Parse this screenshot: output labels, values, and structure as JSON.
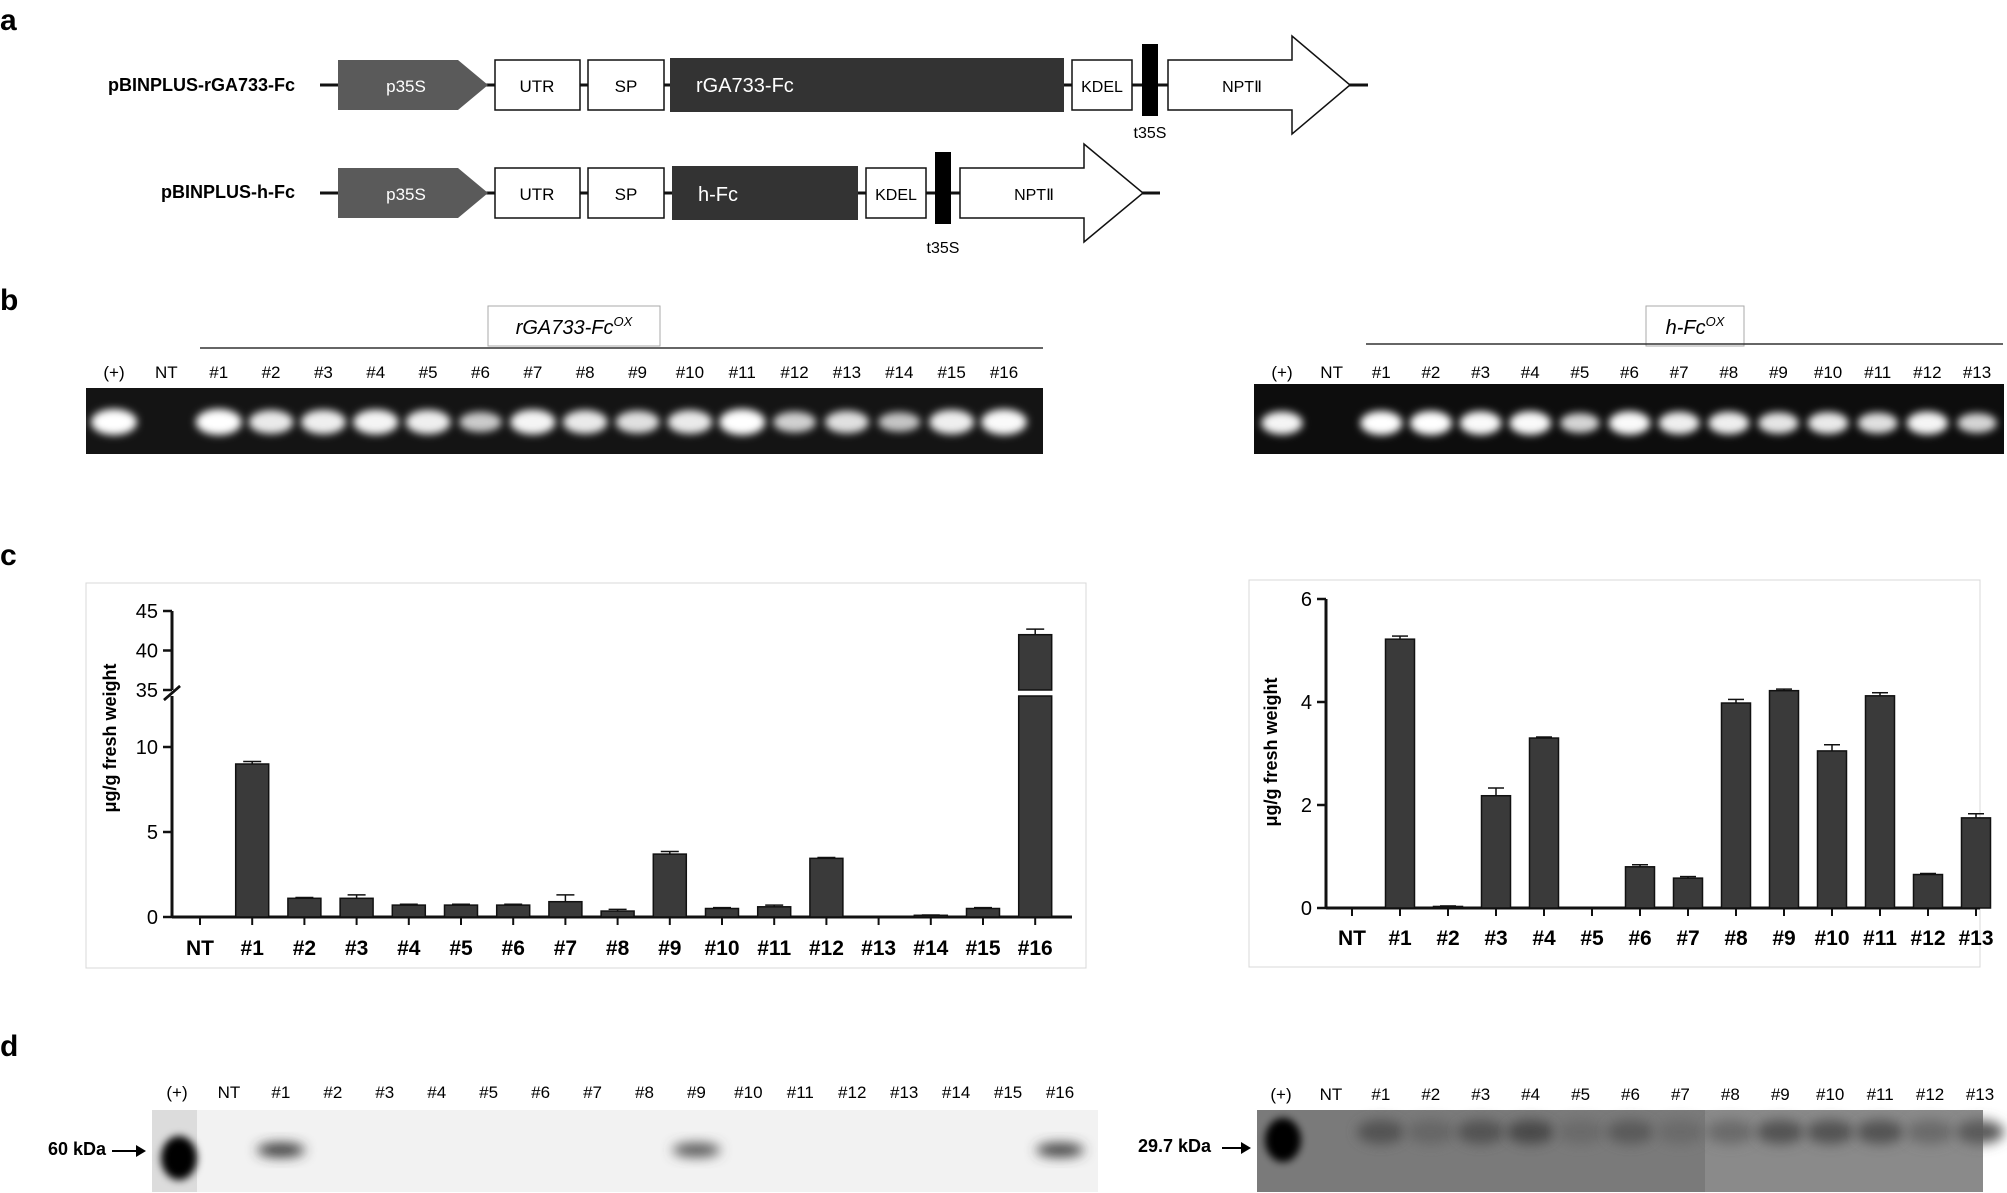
{
  "panel_letters": {
    "a": "a",
    "b": "b",
    "c": "c",
    "d": "d"
  },
  "panel_a": {
    "construct1": {
      "name": "pBINPLUS-rGA733-Fc",
      "p35s": "p35S",
      "utr": "UTR",
      "sp": "SP",
      "gene": "rGA733-Fc",
      "kdel": "KDEL",
      "t35s": "t35S",
      "npt": "NPTⅡ"
    },
    "construct2": {
      "name": "pBINPLUS-h-Fc",
      "p35s": "p35S",
      "utr": "UTR",
      "sp": "SP",
      "gene": "h-Fc",
      "kdel": "KDEL",
      "t35s": "t35S",
      "npt": "NPTⅡ"
    }
  },
  "panel_b": {
    "left": {
      "title": "rGA733-Fc",
      "superscript": "OX",
      "lanes": [
        "(+)",
        "NT",
        "#1",
        "#2",
        "#3",
        "#4",
        "#5",
        "#6",
        "#7",
        "#8",
        "#9",
        "#10",
        "#11",
        "#12",
        "#13",
        "#14",
        "#15",
        "#16"
      ],
      "band_intensity": [
        1.0,
        0,
        1.0,
        0.8,
        0.85,
        0.9,
        0.85,
        0.5,
        0.9,
        0.8,
        0.7,
        0.8,
        1.0,
        0.55,
        0.7,
        0.45,
        0.85,
        0.95
      ]
    },
    "right": {
      "title": "h-Fc",
      "superscript": "OX",
      "lanes": [
        "(+)",
        "NT",
        "#1",
        "#2",
        "#3",
        "#4",
        "#5",
        "#6",
        "#7",
        "#8",
        "#9",
        "#10",
        "#11",
        "#12",
        "#13"
      ],
      "band_intensity": [
        0.9,
        0,
        1.0,
        1.0,
        0.95,
        0.95,
        0.6,
        0.95,
        0.85,
        0.85,
        0.75,
        0.8,
        0.7,
        0.9,
        0.6
      ]
    }
  },
  "chart_data": [
    {
      "type": "bar",
      "ylabel": "μg/g fresh weight",
      "categories": [
        "NT",
        "#1",
        "#2",
        "#3",
        "#4",
        "#5",
        "#6",
        "#7",
        "#8",
        "#9",
        "#10",
        "#11",
        "#12",
        "#13",
        "#14",
        "#15",
        "#16"
      ],
      "values": [
        0,
        9.0,
        1.1,
        1.1,
        0.7,
        0.7,
        0.7,
        0.9,
        0.35,
        3.7,
        0.5,
        0.6,
        3.45,
        0,
        0.1,
        0.5,
        42.0
      ],
      "errors": [
        0,
        0.15,
        0.05,
        0.2,
        0.05,
        0.05,
        0.05,
        0.4,
        0.1,
        0.15,
        0.05,
        0.1,
        0.05,
        0,
        0.02,
        0.05,
        0.7
      ],
      "yticks_low": [
        "0",
        "5",
        "10"
      ],
      "yticks_high": [
        "35",
        "40",
        "45"
      ],
      "broken_axis": {
        "lower": [
          0,
          13
        ],
        "upper": [
          35,
          45
        ]
      }
    },
    {
      "type": "bar",
      "ylabel": "μg/g fresh weight",
      "categories": [
        "NT",
        "#1",
        "#2",
        "#3",
        "#4",
        "#5",
        "#6",
        "#7",
        "#8",
        "#9",
        "#10",
        "#11",
        "#12",
        "#13"
      ],
      "values": [
        0,
        5.22,
        0.03,
        2.18,
        3.3,
        0,
        0.8,
        0.58,
        3.98,
        4.22,
        3.05,
        4.12,
        0.65,
        1.75
      ],
      "errors": [
        0,
        0.06,
        0.01,
        0.15,
        0.02,
        0,
        0.04,
        0.03,
        0.07,
        0.03,
        0.12,
        0.06,
        0.02,
        0.08
      ],
      "yticks": [
        "0",
        "2",
        "4",
        "6"
      ],
      "ylim": [
        0,
        6
      ]
    }
  ],
  "panel_d": {
    "left": {
      "marker": "60 kDa",
      "lanes": [
        "(+)",
        "NT",
        "#1",
        "#2",
        "#3",
        "#4",
        "#5",
        "#6",
        "#7",
        "#8",
        "#9",
        "#10",
        "#11",
        "#12",
        "#13",
        "#14",
        "#15",
        "#16"
      ],
      "band_intensity": [
        1.0,
        0,
        0.85,
        0,
        0,
        0,
        0,
        0,
        0,
        0,
        0.7,
        0,
        0,
        0,
        0,
        0,
        0,
        0.8
      ]
    },
    "right": {
      "marker": "29.7 kDa",
      "lanes": [
        "(+)",
        "NT",
        "#1",
        "#2",
        "#3",
        "#4",
        "#5",
        "#6",
        "#7",
        "#8",
        "#9",
        "#10",
        "#11",
        "#12",
        "#13"
      ],
      "band_intensity": [
        1.0,
        0,
        0.35,
        0.1,
        0.35,
        0.45,
        0.05,
        0.25,
        0.05,
        0.05,
        0.35,
        0.35,
        0.35,
        0.05,
        0.25
      ]
    }
  }
}
